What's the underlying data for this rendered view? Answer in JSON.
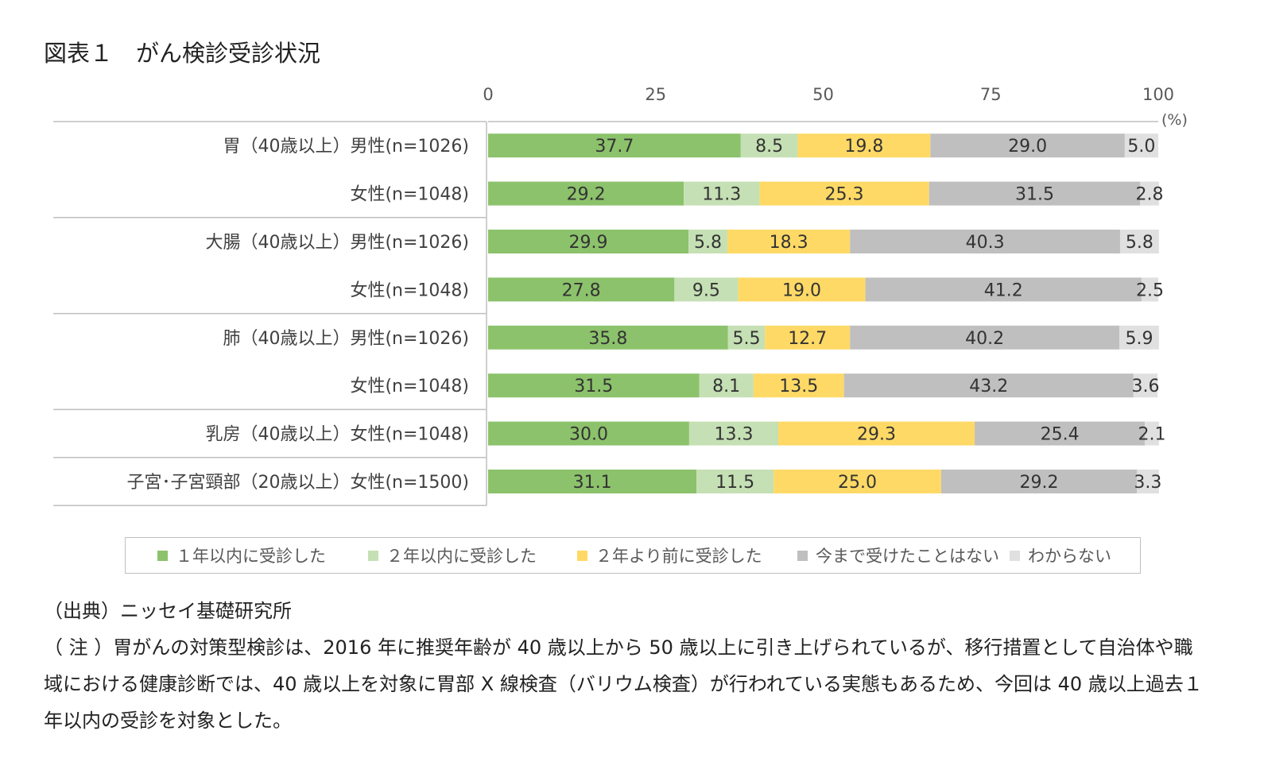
{
  "title": "図表１　がん検診受診状況",
  "unit_label": "(%)",
  "colors": {
    "within_1yr": "#8cc26b",
    "within_2yr": "#c5e0b4",
    "over_2yr": "#ffd966",
    "never": "#bfbfbf",
    "unknown": "#e0e0e0"
  },
  "notes": {
    "source": "（出典）ニッセイ基礎研究所",
    "note_lines": [
      "（ 注 ）胃がんの対策型検診は、2016 年に推奨年齢が 40 歳以上から 50 歳以上に引き上げられているが、移行措置として自治体や職",
      "域における健康診断では、40 歳以上を対象に胃部 X 線検査（バリウム検査）が行われている実態もあるため、今回は 40 歳以上過去１",
      "年以内の受診を対象とした。"
    ]
  },
  "chart_data": {
    "type": "bar",
    "orientation": "horizontal",
    "stacked": true,
    "xlim": [
      0,
      100
    ],
    "xticks": [
      "0",
      "25",
      "50",
      "75",
      "100"
    ],
    "xlabel": "(%)",
    "legend_position": "bottom",
    "categories": [
      "胃（40歳以上）男性(n=1026)",
      "女性(n=1048)",
      "大腸（40歳以上）男性(n=1026)",
      "女性(n=1048)",
      "肺（40歳以上）男性(n=1026)",
      "女性(n=1048)",
      "乳房（40歳以上）女性(n=1048)",
      "子宮･子宮頸部（20歳以上）女性(n=1500)"
    ],
    "group_separators_after": [
      1,
      3,
      5,
      6
    ],
    "series": [
      {
        "name": "１年以内に受診した",
        "values": [
          37.7,
          29.2,
          29.9,
          27.8,
          35.8,
          31.5,
          30.0,
          31.1
        ]
      },
      {
        "name": "２年以内に受診した",
        "values": [
          8.5,
          11.3,
          5.8,
          9.5,
          5.5,
          8.1,
          13.3,
          11.5
        ]
      },
      {
        "name": "２年より前に受診した",
        "values": [
          19.8,
          25.3,
          18.3,
          19.0,
          12.7,
          13.5,
          29.3,
          25.0
        ]
      },
      {
        "name": "今まで受けたことはない",
        "values": [
          29.0,
          31.5,
          40.3,
          41.2,
          40.2,
          43.2,
          25.4,
          29.2
        ]
      },
      {
        "name": "わからない",
        "values": [
          5.0,
          2.8,
          5.8,
          2.5,
          5.9,
          3.6,
          2.1,
          3.3
        ]
      }
    ]
  }
}
